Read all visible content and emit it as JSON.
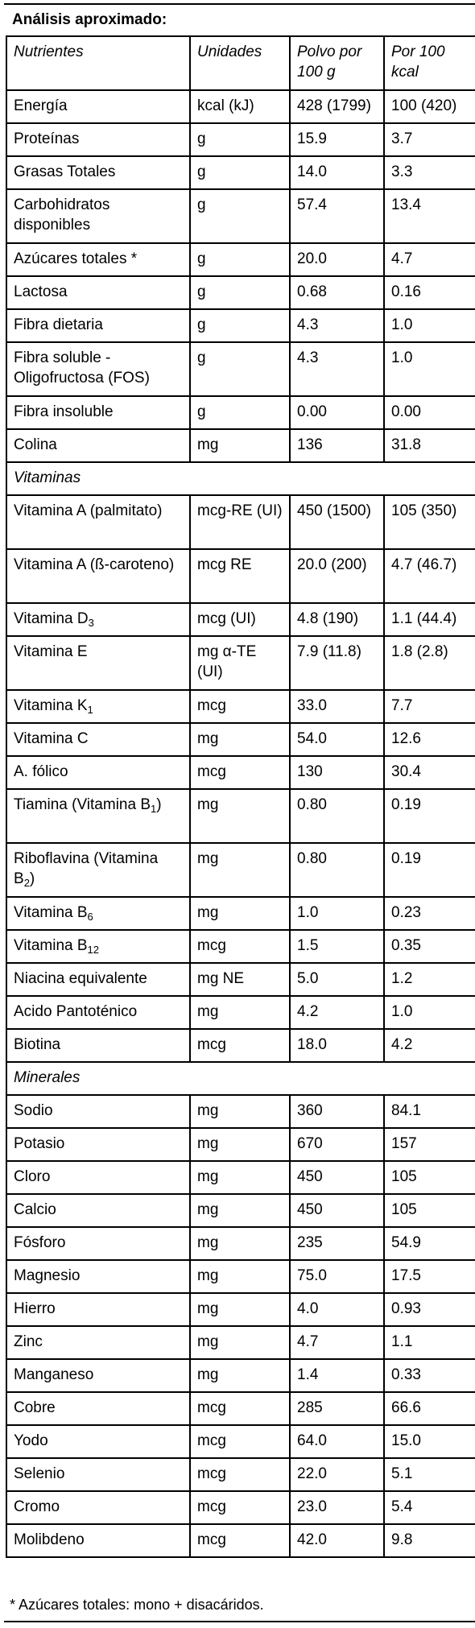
{
  "title": "Análisis aproximado:",
  "columns": [
    "Nutrientes",
    "Unidades",
    "Polvo por 100 g",
    "Por 100 kcal"
  ],
  "general_rows": [
    {
      "name": "Energía",
      "unit": "kcal (kJ)",
      "p100g": "428 (1799)",
      "p100kcal": "100 (420)",
      "h": 41
    },
    {
      "name": "Proteínas",
      "unit": "g",
      "p100g": "15.9",
      "p100kcal": "3.7",
      "h": 41
    },
    {
      "name": "Grasas Totales",
      "unit": "g",
      "p100g": "14.0",
      "p100kcal": "3.3",
      "h": 41
    },
    {
      "name": "Carbohidratos disponibles",
      "unit": "g",
      "p100g": "57.4",
      "p100kcal": "13.4",
      "h": 67
    },
    {
      "name": "Azúcares totales *",
      "unit": "g",
      "p100g": "20.0",
      "p100kcal": "4.7",
      "h": 41
    },
    {
      "name": "Lactosa",
      "unit": "g",
      "p100g": "0.68",
      "p100kcal": "0.16",
      "h": 41
    },
    {
      "name": "Fibra dietaria",
      "unit": "g",
      "p100g": "4.3",
      "p100kcal": "1.0",
      "h": 41
    },
    {
      "name": "Fibra soluble - Oligofructosa (FOS)",
      "unit": "g",
      "p100g": "4.3",
      "p100kcal": "1.0",
      "h": 67
    },
    {
      "name": "Fibra insoluble",
      "unit": "g",
      "p100g": "0.00",
      "p100kcal": "0.00",
      "h": 41
    },
    {
      "name": "Colina",
      "unit": "mg",
      "p100g": "136",
      "p100kcal": "31.8",
      "h": 41
    }
  ],
  "vitamins_label": "Vitaminas",
  "vitamin_rows": [
    {
      "name": "Vitamina A (palmitato)",
      "unit": "mcg-RE (UI)",
      "p100g": "450 (1500)",
      "p100kcal": "105 (350)",
      "h": 67
    },
    {
      "name": "Vitamina A (ß-caroteno)",
      "unit": "mcg RE",
      "p100g": "20.0 (200)",
      "p100kcal": "4.7 (46.7)",
      "h": 67
    },
    {
      "name": "Vitamina D",
      "sub": "3",
      "unit": "mcg (UI)",
      "p100g": "4.8 (190)",
      "p100kcal": "1.1 (44.4)",
      "h": 41
    },
    {
      "name": "Vitamina E",
      "unit": "mg α-TE (UI)",
      "p100g": "7.9 (11.8)",
      "p100kcal": "1.8 (2.8)",
      "h": 67
    },
    {
      "name": "Vitamina K",
      "sub": "1",
      "unit": "mcg",
      "p100g": "33.0",
      "p100kcal": "7.7",
      "h": 41
    },
    {
      "name": "Vitamina C",
      "unit": "mg",
      "p100g": "54.0",
      "p100kcal": "12.6",
      "h": 41
    },
    {
      "name": "A. fólico",
      "unit": "mcg",
      "p100g": "130",
      "p100kcal": "30.4",
      "h": 41
    },
    {
      "name": "Tiamina (Vitamina B",
      "sub": "1",
      "suffix": ")",
      "unit": "mg",
      "p100g": "0.80",
      "p100kcal": "0.19",
      "h": 67
    },
    {
      "name": "Riboflavina (Vitamina B",
      "sub": "2",
      "suffix": ")",
      "unit": "mg",
      "p100g": "0.80",
      "p100kcal": "0.19",
      "h": 67
    },
    {
      "name": "Vitamina B",
      "sub": "6",
      "unit": "mg",
      "p100g": "1.0",
      "p100kcal": "0.23",
      "h": 41
    },
    {
      "name": "Vitamina B",
      "sub": "12",
      "unit": "mcg",
      "p100g": "1.5",
      "p100kcal": "0.35",
      "h": 41
    },
    {
      "name": "Niacina equivalente",
      "unit": "mg NE",
      "p100g": "5.0",
      "p100kcal": "1.2",
      "h": 41
    },
    {
      "name": "Acido Pantoténico",
      "unit": "mg",
      "p100g": "4.2",
      "p100kcal": "1.0",
      "h": 41
    },
    {
      "name": "Biotina",
      "unit": "mcg",
      "p100g": "18.0",
      "p100kcal": "4.2",
      "h": 41
    }
  ],
  "minerals_label": "Minerales",
  "mineral_rows": [
    {
      "name": "Sodio",
      "unit": "mg",
      "p100g": "360",
      "p100kcal": "84.1",
      "h": 41
    },
    {
      "name": "Potasio",
      "unit": "mg",
      "p100g": "670",
      "p100kcal": "157",
      "h": 41
    },
    {
      "name": "Cloro",
      "unit": "mg",
      "p100g": "450",
      "p100kcal": "105",
      "h": 41
    },
    {
      "name": "Calcio",
      "unit": "mg",
      "p100g": "450",
      "p100kcal": "105",
      "h": 41
    },
    {
      "name": "Fósforo",
      "unit": "mg",
      "p100g": "235",
      "p100kcal": "54.9",
      "h": 41
    },
    {
      "name": "Magnesio",
      "unit": "mg",
      "p100g": "75.0",
      "p100kcal": "17.5",
      "h": 41
    },
    {
      "name": "Hierro",
      "unit": "mg",
      "p100g": "4.0",
      "p100kcal": "0.93",
      "h": 41
    },
    {
      "name": "Zinc",
      "unit": "mg",
      "p100g": "4.7",
      "p100kcal": "1.1",
      "h": 41
    },
    {
      "name": "Manganeso",
      "unit": "mg",
      "p100g": "1.4",
      "p100kcal": "0.33",
      "h": 41
    },
    {
      "name": "Cobre",
      "unit": "mcg",
      "p100g": "285",
      "p100kcal": "66.6",
      "h": 41
    },
    {
      "name": "Yodo",
      "unit": "mcg",
      "p100g": "64.0",
      "p100kcal": "15.0",
      "h": 41
    },
    {
      "name": "Selenio",
      "unit": "mcg",
      "p100g": "22.0",
      "p100kcal": "5.1",
      "h": 41
    },
    {
      "name": "Cromo",
      "unit": "mcg",
      "p100g": "23.0",
      "p100kcal": "5.4",
      "h": 41
    },
    {
      "name": "Molibdeno",
      "unit": "mcg",
      "p100g": "42.0",
      "p100kcal": "9.8",
      "h": 41
    }
  ],
  "footnote": "* Azúcares totales: mono + disacáridos."
}
